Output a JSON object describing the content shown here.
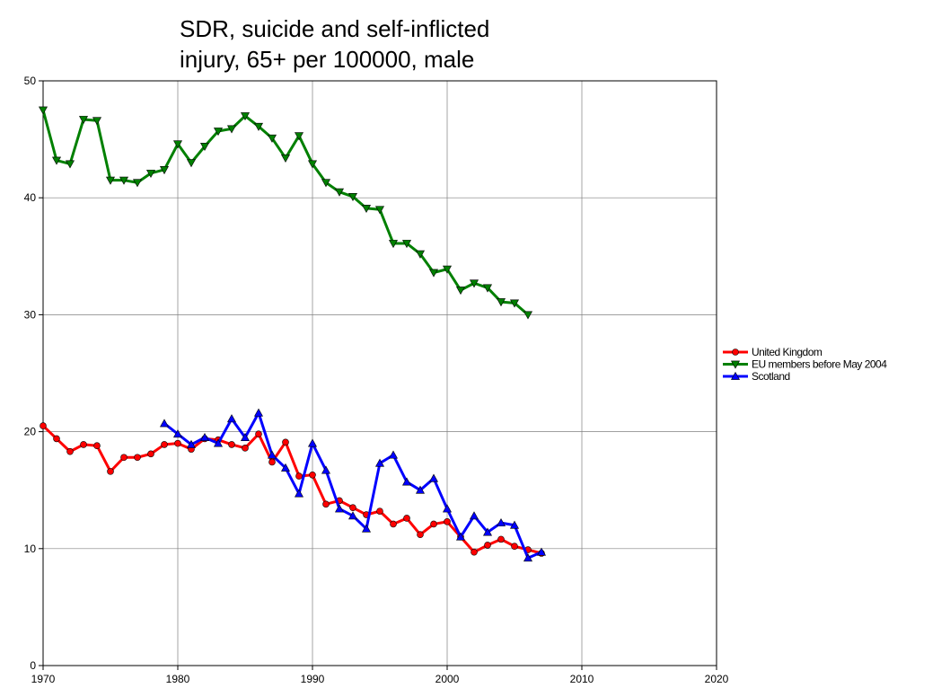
{
  "chart_data": {
    "type": "line",
    "title": [
      "SDR, suicide and self-inflicted",
      "injury, 65+ per 100000, male"
    ],
    "x": [
      1970,
      1971,
      1972,
      1973,
      1974,
      1975,
      1976,
      1977,
      1978,
      1979,
      1980,
      1981,
      1982,
      1983,
      1984,
      1985,
      1986,
      1987,
      1988,
      1989,
      1990,
      1991,
      1992,
      1993,
      1994,
      1995,
      1996,
      1997,
      1998,
      1999,
      2000,
      2001,
      2002,
      2003,
      2004,
      2005,
      2006,
      2007
    ],
    "series": [
      {
        "name": "United Kingdom",
        "color": "#ff0000",
        "marker": "circle",
        "values": [
          20.5,
          19.4,
          18.3,
          18.9,
          18.8,
          16.6,
          17.8,
          17.8,
          18.1,
          18.9,
          19.0,
          18.5,
          19.4,
          19.3,
          18.9,
          18.6,
          19.8,
          17.4,
          19.1,
          16.2,
          16.3,
          13.8,
          14.1,
          13.5,
          12.9,
          13.2,
          12.1,
          12.6,
          11.2,
          12.1,
          12.3,
          11.0,
          9.7,
          10.3,
          10.8,
          10.2,
          9.9,
          9.6
        ]
      },
      {
        "name": "EU members before May 2004",
        "color": "#008000",
        "marker": "triangle-down",
        "values": [
          47.5,
          43.2,
          42.9,
          46.7,
          46.6,
          41.5,
          41.5,
          41.3,
          42.1,
          42.4,
          44.6,
          43.0,
          44.4,
          45.7,
          45.9,
          47.0,
          46.1,
          45.1,
          43.4,
          45.3,
          42.9,
          41.3,
          40.5,
          40.1,
          39.1,
          39.0,
          36.1,
          36.1,
          35.2,
          33.6,
          33.9,
          32.1,
          32.7,
          32.3,
          31.1,
          31.0,
          30.0,
          null
        ]
      },
      {
        "name": "Scotland",
        "color": "#0000ff",
        "marker": "triangle-up",
        "values": [
          null,
          null,
          null,
          null,
          null,
          null,
          null,
          null,
          null,
          20.7,
          19.8,
          18.9,
          19.5,
          19.0,
          21.1,
          19.5,
          21.6,
          18.0,
          16.9,
          14.7,
          19.0,
          16.7,
          13.4,
          12.8,
          11.7,
          17.3,
          18.0,
          15.7,
          15.0,
          16.0,
          13.4,
          11.0,
          12.8,
          11.4,
          12.2,
          12.0,
          9.2,
          9.7
        ]
      }
    ],
    "xlim": [
      1970,
      2020
    ],
    "xticks": [
      1970,
      1980,
      1990,
      2000,
      2010,
      2020
    ],
    "ylim": [
      0,
      50
    ],
    "yticks": [
      0,
      10,
      20,
      30,
      40,
      50
    ],
    "grid": true,
    "legend": "right"
  }
}
